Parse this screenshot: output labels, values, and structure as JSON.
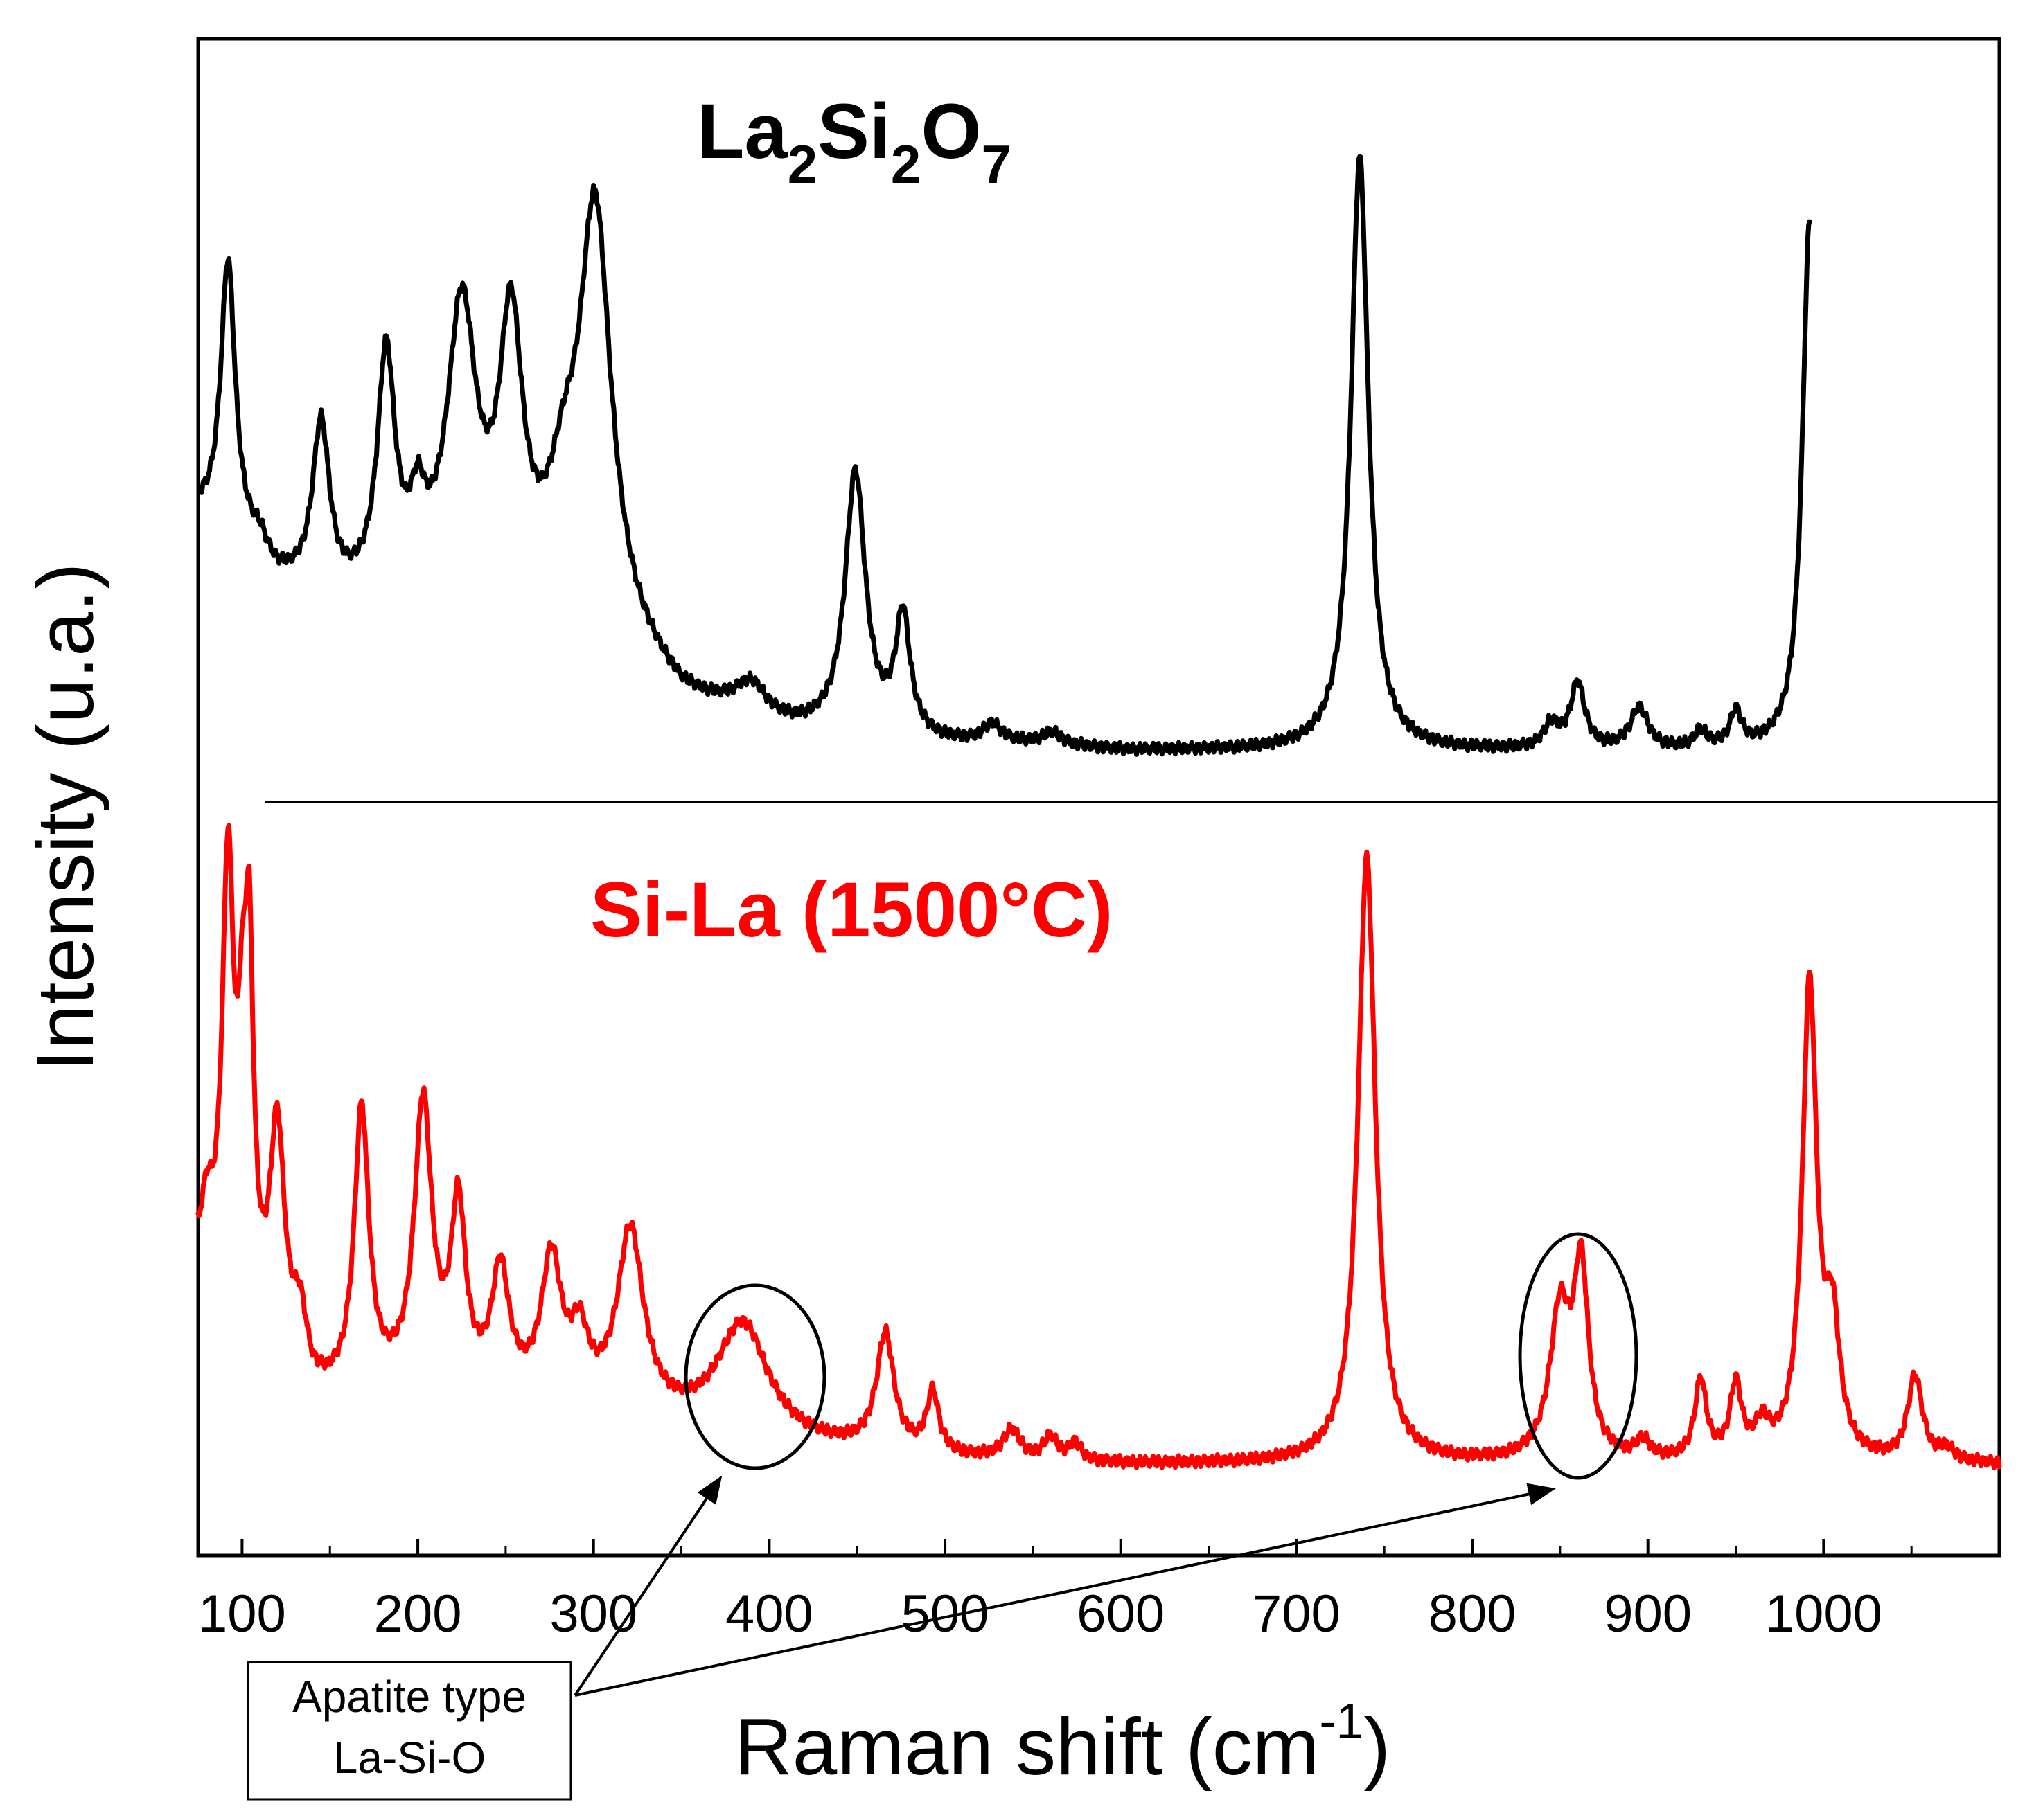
{
  "chart_data": {
    "type": "line",
    "xlabel": "Raman shift (cm",
    "xlabel_sup": "-1",
    "xlabel_close": ")",
    "ylabel": "Intensity (u.a.)",
    "xlim": [
      75,
      1100
    ],
    "x_ticks": [
      100,
      200,
      300,
      400,
      500,
      600,
      700,
      800,
      900,
      1000
    ],
    "x_minor_ticks": [
      150,
      250,
      350,
      450,
      550,
      650,
      750,
      850,
      950,
      1050
    ],
    "grid": false,
    "legend": "none",
    "series": [
      {
        "name": "La2Si2O7",
        "label_parts": [
          "La",
          "2",
          "Si",
          "2",
          "O",
          "7"
        ],
        "color": "#000000",
        "panel": "top",
        "baseline_x": [
          77,
          100,
          120,
          150,
          200,
          250,
          300,
          350,
          400,
          450,
          500,
          550,
          600,
          650,
          700,
          750,
          800,
          850,
          900,
          950,
          975,
          990,
          992
        ],
        "baseline_y": [
          0.39,
          0.34,
          0.28,
          0.24,
          0.26,
          0.24,
          0.21,
          0.08,
          0.03,
          0.02,
          0.01,
          0.01,
          0.0,
          0.0,
          0.0,
          0.0,
          0.0,
          0.0,
          0.0,
          0.0,
          0.0,
          0.0,
          0.0
        ],
        "peaks": [
          [
            92,
            0.46,
            5
          ],
          [
            110,
            0.03,
            5
          ],
          [
            145,
            0.29,
            6
          ],
          [
            182,
            0.39,
            6
          ],
          [
            200,
            0.1,
            5
          ],
          [
            225,
            0.47,
            10
          ],
          [
            253,
            0.44,
            8
          ],
          [
            283,
            0.14,
            10
          ],
          [
            301,
            0.68,
            11
          ],
          [
            390,
            0.06,
            12
          ],
          [
            449,
            0.44,
            7
          ],
          [
            476,
            0.2,
            5
          ],
          [
            527,
            0.03,
            6
          ],
          [
            561,
            0.02,
            6
          ],
          [
            736,
            1.0,
            6
          ],
          [
            845,
            0.04,
            5
          ],
          [
            860,
            0.11,
            5
          ],
          [
            895,
            0.07,
            6
          ],
          [
            930,
            0.03,
            4
          ],
          [
            950,
            0.06,
            4
          ],
          [
            992,
            0.89,
            5
          ]
        ]
      },
      {
        "name": "Si-La (1500°C)",
        "color": "#ff0000",
        "panel": "bottom",
        "baseline_x": [
          75,
          100,
          140,
          200,
          300,
          400,
          500,
          550,
          600,
          700,
          800,
          850,
          900,
          1000,
          1100
        ],
        "baseline_y": [
          0.31,
          0.22,
          0.1,
          0.12,
          0.08,
          0.03,
          0.01,
          0.0,
          0.0,
          0.0,
          0.0,
          0.0,
          0.0,
          0.0,
          0.0
        ],
        "peaks": [
          [
            80,
            0.1,
            4
          ],
          [
            92,
            0.71,
            4
          ],
          [
            100,
            0.29,
            3
          ],
          [
            104,
            0.55,
            3
          ],
          [
            120,
            0.37,
            5
          ],
          [
            133,
            0.1,
            5
          ],
          [
            168,
            0.46,
            5
          ],
          [
            203,
            0.46,
            6
          ],
          [
            223,
            0.29,
            5
          ],
          [
            247,
            0.2,
            6
          ],
          [
            276,
            0.23,
            7
          ],
          [
            292,
            0.1,
            6
          ],
          [
            321,
            0.3,
            9
          ],
          [
            385,
            0.19,
            18
          ],
          [
            466,
            0.19,
            6
          ],
          [
            493,
            0.1,
            4
          ],
          [
            538,
            0.05,
            6
          ],
          [
            560,
            0.04,
            5
          ],
          [
            574,
            0.03,
            4
          ],
          [
            740,
            1.0,
            6
          ],
          [
            850,
            0.24,
            7
          ],
          [
            862,
            0.3,
            5
          ],
          [
            897,
            0.03,
            5
          ],
          [
            930,
            0.13,
            4
          ],
          [
            950,
            0.12,
            4
          ],
          [
            965,
            0.05,
            5
          ],
          [
            992,
            0.78,
            5
          ],
          [
            1005,
            0.2,
            5
          ],
          [
            1052,
            0.14,
            5
          ],
          [
            1070,
            0.02,
            5
          ]
        ]
      }
    ],
    "annotations": [
      {
        "text_lines": [
          "Apatite type",
          "La-Si-O"
        ],
        "targets": [
          385,
          858
        ]
      }
    ]
  }
}
